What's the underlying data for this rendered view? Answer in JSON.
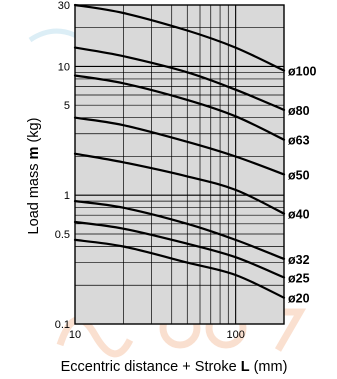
{
  "chart_data": {
    "type": "line",
    "xscale": "log",
    "yscale": "log",
    "xlim": [
      10,
      200
    ],
    "ylim": [
      0.1,
      30
    ],
    "xticks": [
      {
        "value": 10,
        "label": "10"
      },
      {
        "value": 100,
        "label": "100"
      }
    ],
    "yticks": [
      {
        "value": 30,
        "label": "30"
      },
      {
        "value": 10,
        "label": "10"
      },
      {
        "value": 5,
        "label": "5"
      },
      {
        "value": 1,
        "label": "1"
      },
      {
        "value": 0.5,
        "label": "0.5"
      },
      {
        "value": 0.1,
        "label": "0.1"
      }
    ],
    "xlabel": {
      "before": "Eccentric distance + Stroke ",
      "bold": "L",
      "after": " (mm)"
    },
    "ylabel": {
      "before": "Load mass ",
      "bold": "m",
      "after": " (kg)"
    },
    "grid": true,
    "background_color": "#d9d9d9",
    "line_color": "#000000",
    "series": [
      {
        "name": "ø100",
        "x": [
          10,
          20,
          50,
          100,
          200
        ],
        "y": [
          30,
          26,
          19,
          14,
          9.3
        ]
      },
      {
        "name": "ø80",
        "x": [
          10,
          20,
          50,
          100,
          200
        ],
        "y": [
          14,
          12,
          9,
          6.6,
          4.6
        ]
      },
      {
        "name": "ø63",
        "x": [
          10,
          20,
          50,
          100,
          200
        ],
        "y": [
          8.5,
          7.4,
          5.5,
          4.1,
          2.7
        ]
      },
      {
        "name": "ø50",
        "x": [
          10,
          20,
          50,
          100,
          200
        ],
        "y": [
          4,
          3.5,
          2.6,
          2,
          1.45
        ]
      },
      {
        "name": "ø40",
        "x": [
          10,
          20,
          50,
          100,
          200
        ],
        "y": [
          2.1,
          1.8,
          1.4,
          1.1,
          0.72
        ]
      },
      {
        "name": "ø32",
        "x": [
          10,
          20,
          50,
          100,
          200
        ],
        "y": [
          0.9,
          0.8,
          0.6,
          0.45,
          0.32
        ]
      },
      {
        "name": "ø25",
        "x": [
          10,
          20,
          50,
          100,
          200
        ],
        "y": [
          0.62,
          0.55,
          0.42,
          0.33,
          0.23
        ]
      },
      {
        "name": "ø20",
        "x": [
          10,
          20,
          50,
          100,
          200
        ],
        "y": [
          0.45,
          0.4,
          0.3,
          0.24,
          0.16
        ]
      }
    ]
  }
}
